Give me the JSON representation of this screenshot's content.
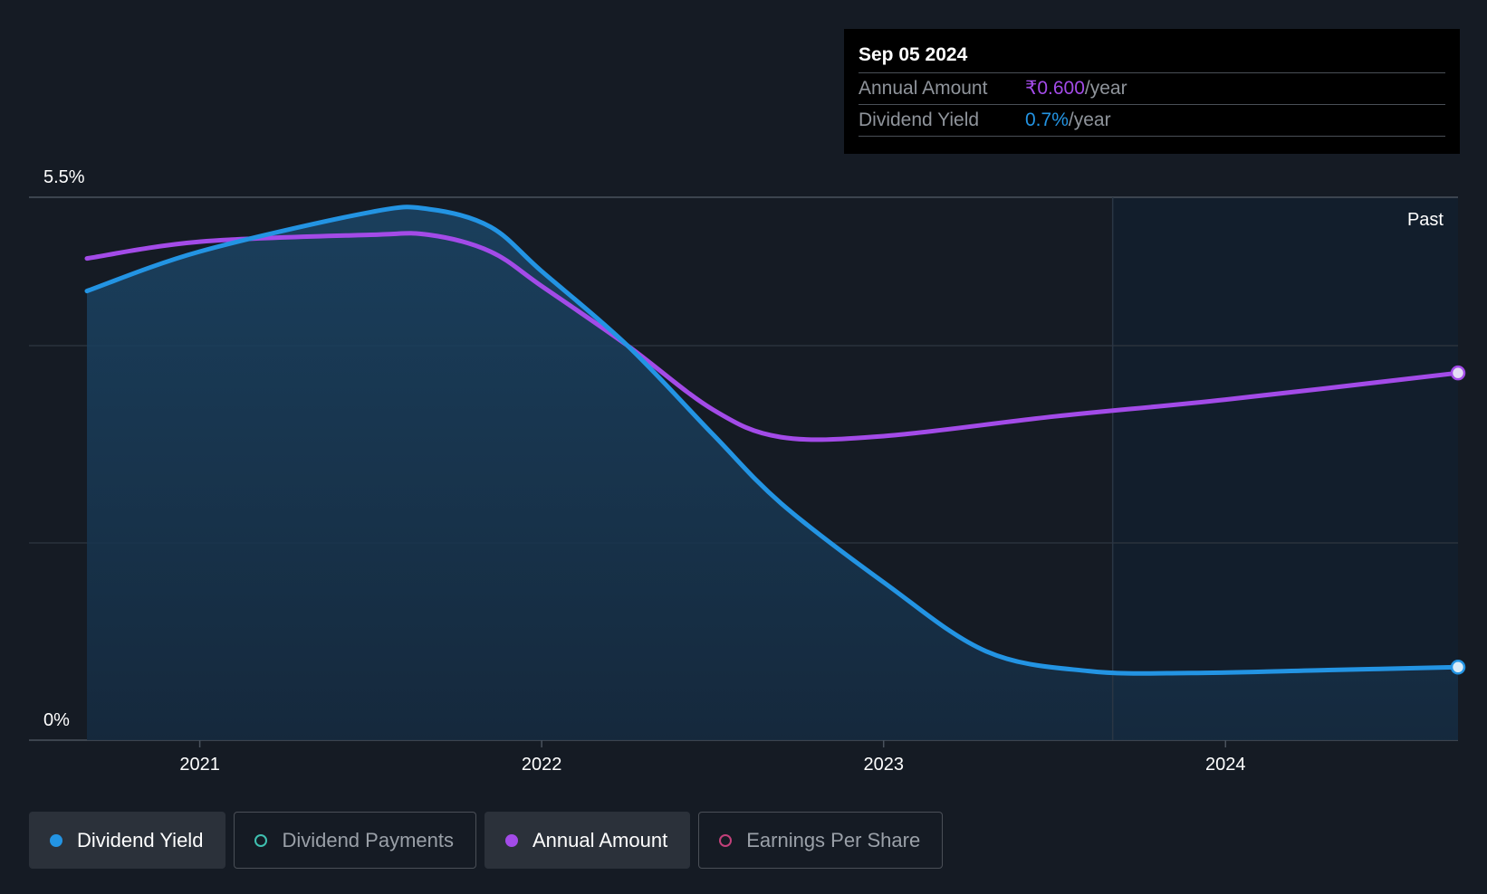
{
  "chart_data": {
    "type": "line",
    "x_axis": {
      "ticks": [
        "2021",
        "2022",
        "2023",
        "2024"
      ],
      "range": [
        2020.67,
        2024.68
      ]
    },
    "y_axis": {
      "top_label": "5.5%",
      "bottom_label": "0%",
      "range": [
        0,
        5.5
      ]
    },
    "past_label": "Past",
    "forecast_shading_start": 2023.67,
    "series": [
      {
        "name": "Dividend Yield",
        "color": "#2394e3",
        "filled": true,
        "points": [
          [
            2020.67,
            4.55
          ],
          [
            2021.0,
            4.95
          ],
          [
            2021.5,
            5.35
          ],
          [
            2021.67,
            5.38
          ],
          [
            2021.85,
            5.2
          ],
          [
            2022.0,
            4.75
          ],
          [
            2022.25,
            4.0
          ],
          [
            2022.5,
            3.1
          ],
          [
            2022.7,
            2.4
          ],
          [
            2023.0,
            1.6
          ],
          [
            2023.3,
            0.9
          ],
          [
            2023.6,
            0.7
          ],
          [
            2023.9,
            0.68
          ],
          [
            2024.3,
            0.71
          ],
          [
            2024.68,
            0.74
          ]
        ]
      },
      {
        "name": "Annual Amount",
        "color": "#a34be8",
        "filled": false,
        "points": [
          [
            2020.67,
            4.88
          ],
          [
            2021.0,
            5.05
          ],
          [
            2021.5,
            5.12
          ],
          [
            2021.67,
            5.12
          ],
          [
            2021.85,
            4.95
          ],
          [
            2022.0,
            4.6
          ],
          [
            2022.25,
            4.0
          ],
          [
            2022.5,
            3.35
          ],
          [
            2022.7,
            3.07
          ],
          [
            2023.0,
            3.08
          ],
          [
            2023.5,
            3.28
          ],
          [
            2024.0,
            3.45
          ],
          [
            2024.68,
            3.72
          ]
        ]
      }
    ],
    "tooltip": {
      "date": "Sep 05 2024",
      "rows": [
        {
          "label": "Annual Amount",
          "value": "₹0.600",
          "unit": "/year",
          "color": "#a34be8"
        },
        {
          "label": "Dividend Yield",
          "value": "0.7%",
          "unit": "/year",
          "color": "#2394e3"
        }
      ]
    }
  },
  "legend": [
    {
      "label": "Dividend Yield",
      "color": "#2394e3",
      "active": true
    },
    {
      "label": "Dividend Payments",
      "color": "#3fc0b0",
      "active": false
    },
    {
      "label": "Annual Amount",
      "color": "#a34be8",
      "active": true
    },
    {
      "label": "Earnings Per Share",
      "color": "#c2407a",
      "active": false
    }
  ]
}
